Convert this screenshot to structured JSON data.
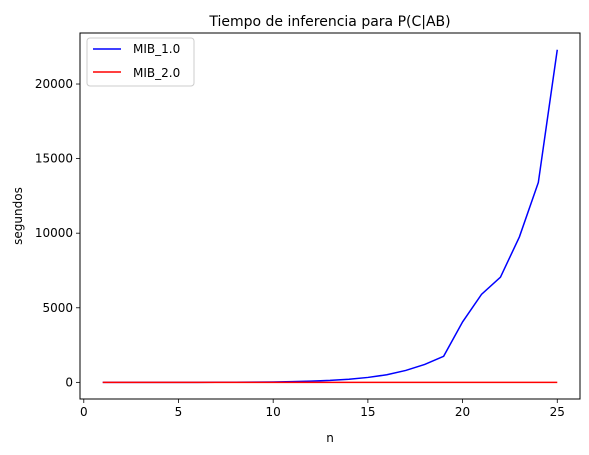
{
  "chart_data": {
    "type": "line",
    "title": "Tiempo de inferencia para P(C|AB)",
    "xlabel": "n",
    "ylabel": "segundos",
    "xlim": [
      -0.2,
      26.2
    ],
    "ylim": [
      -1115,
      23420
    ],
    "xticks": [
      0,
      5,
      10,
      15,
      20,
      25
    ],
    "yticks": [
      0,
      5000,
      10000,
      15000,
      20000
    ],
    "grid": false,
    "legend_position": "top-left",
    "x": [
      1,
      2,
      3,
      4,
      5,
      6,
      7,
      8,
      9,
      10,
      11,
      12,
      13,
      14,
      15,
      16,
      17,
      18,
      19,
      20,
      21,
      22,
      23,
      24,
      25
    ],
    "series": [
      {
        "name": "MIB_1.0",
        "color": "#0000ff",
        "values": [
          0,
          0,
          0,
          0,
          1,
          2,
          4,
          8,
          15,
          28,
          50,
          85,
          130,
          210,
          330,
          510,
          800,
          1200,
          1750,
          4050,
          5900,
          7050,
          9750,
          13400,
          22300
        ]
      },
      {
        "name": "MIB_2.0",
        "color": "#ff0000",
        "values": [
          0,
          0,
          0,
          0,
          0,
          0,
          0,
          0,
          0,
          0,
          0,
          0,
          0,
          0,
          0,
          0,
          0,
          0,
          0,
          0,
          0,
          0,
          0,
          0,
          0
        ]
      }
    ]
  }
}
